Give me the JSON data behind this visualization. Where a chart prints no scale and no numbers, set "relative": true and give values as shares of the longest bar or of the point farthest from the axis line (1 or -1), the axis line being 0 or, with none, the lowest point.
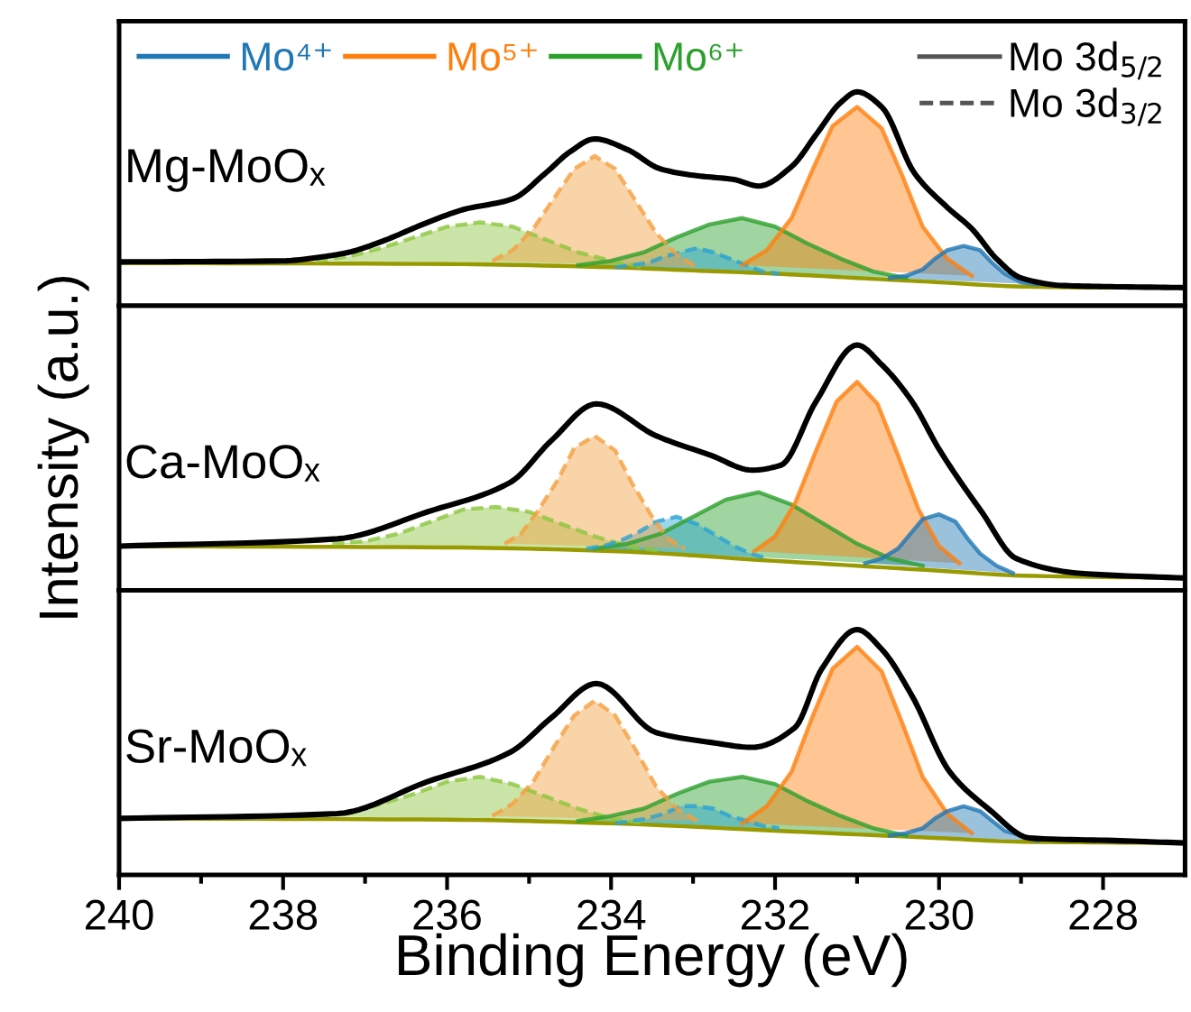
{
  "chart_data": [
    {
      "type": "area",
      "title": "Mg-MoOₓ",
      "relative": true,
      "xlim": [
        240,
        227
      ],
      "tick_labels": false,
      "legend": "top left",
      "annotations": [
        "Mo 3d$_{5/2}$",
        "Mo 3d$_{3/2}$"
      ],
      "series": [
        {
          "type": "line",
          "color": "#999900",
          "x": [
            240,
            236,
            234,
            233,
            232,
            231,
            230,
            229,
            228,
            227
          ],
          "values": [
            0.2,
            0.195,
            0.18,
            0.165,
            0.15,
            0.13,
            0.11,
            0.09,
            0.085,
            0.085
          ]
        },
        {
          "color": "#8cc63f",
          "line_style": "dashed",
          "x": [
            237.6,
            237.2,
            236.8,
            236.4,
            236.0,
            235.6,
            235.2,
            234.8,
            234.4,
            234.0,
            233.6
          ],
          "values": [
            0.21,
            0.23,
            0.27,
            0.32,
            0.37,
            0.39,
            0.37,
            0.31,
            0.25,
            0.21,
            0.18
          ]
        },
        {
          "name": "Mo⁶⁺",
          "color": "#2ca02c",
          "line_style": "solid",
          "x": [
            234.4,
            234.0,
            233.6,
            233.2,
            232.8,
            232.4,
            232.0,
            231.6,
            231.2,
            230.8,
            230.4
          ],
          "values": [
            0.19,
            0.21,
            0.25,
            0.32,
            0.38,
            0.41,
            0.37,
            0.29,
            0.22,
            0.16,
            0.13
          ]
        },
        {
          "color": "#29a3d4",
          "line_style": "dashed",
          "x": [
            233.95,
            233.75,
            233.55,
            233.35,
            233.15,
            232.95,
            232.75,
            232.55,
            232.35,
            232.15,
            231.95
          ],
          "values": [
            0.18,
            0.19,
            0.2,
            0.23,
            0.25,
            0.27,
            0.25,
            0.22,
            0.19,
            0.16,
            0.15
          ]
        },
        {
          "color": "#f5a040",
          "line_style": "dashed",
          "x": [
            235.45,
            235.2,
            234.95,
            234.7,
            234.45,
            234.2,
            233.95,
            233.7,
            233.45,
            233.2,
            232.95
          ],
          "values": [
            0.21,
            0.26,
            0.36,
            0.5,
            0.64,
            0.7,
            0.64,
            0.49,
            0.34,
            0.24,
            0.18
          ]
        },
        {
          "name": "Mo⁵⁺",
          "color": "#ff7f0e",
          "line_style": "solid",
          "x": [
            232.4,
            232.1,
            231.8,
            231.55,
            231.3,
            231.0,
            230.7,
            230.45,
            230.2,
            229.9,
            229.6
          ],
          "values": [
            0.19,
            0.26,
            0.41,
            0.63,
            0.84,
            0.93,
            0.83,
            0.61,
            0.37,
            0.22,
            0.14
          ]
        },
        {
          "name": "Mo⁴⁺",
          "color": "#1f77b4",
          "line_style": "solid",
          "x": [
            230.6,
            230.4,
            230.2,
            230.05,
            229.9,
            229.7,
            229.5,
            229.35,
            229.2,
            229.0,
            228.8
          ],
          "values": [
            0.13,
            0.14,
            0.17,
            0.22,
            0.26,
            0.28,
            0.26,
            0.2,
            0.15,
            0.11,
            0.1
          ]
        },
        {
          "type": "line",
          "color": "#000000",
          "x": [
            240,
            238,
            237.5,
            237.2,
            236.8,
            236.3,
            235.8,
            235.2,
            234.8,
            234.5,
            234.2,
            233.8,
            233.4,
            233.0,
            232.5,
            232.2,
            231.8,
            231.5,
            231.2,
            231.0,
            230.7,
            230.3,
            229.9,
            229.6,
            229.3,
            229.0,
            228.5,
            228,
            227
          ],
          "values": [
            0.205,
            0.21,
            0.23,
            0.25,
            0.3,
            0.38,
            0.45,
            0.5,
            0.62,
            0.72,
            0.78,
            0.73,
            0.64,
            0.61,
            0.59,
            0.56,
            0.65,
            0.8,
            0.95,
            1.0,
            0.93,
            0.62,
            0.46,
            0.36,
            0.22,
            0.13,
            0.095,
            0.09,
            0.085
          ]
        }
      ]
    },
    {
      "type": "area",
      "title": "Ca-MoOₓ",
      "ylabel": "Intensity (a.u.)",
      "relative": true,
      "xlim": [
        240,
        227
      ],
      "tick_labels": false,
      "series": [
        {
          "type": "line",
          "color": "#999900",
          "x": [
            240,
            236,
            234,
            232,
            230,
            229,
            227
          ],
          "values": [
            0.18,
            0.175,
            0.16,
            0.12,
            0.08,
            0.06,
            0.05
          ]
        },
        {
          "color": "#8cc63f",
          "line_style": "dashed",
          "x": [
            237.4,
            237.0,
            236.6,
            236.2,
            235.8,
            235.4,
            235.0,
            234.6,
            234.2,
            233.8,
            233.4
          ],
          "values": [
            0.19,
            0.2,
            0.23,
            0.28,
            0.33,
            0.34,
            0.32,
            0.27,
            0.22,
            0.18,
            0.16
          ]
        },
        {
          "color": "#2ca02c",
          "line_style": "solid",
          "x": [
            234.2,
            233.8,
            233.4,
            233.0,
            232.6,
            232.2,
            231.8,
            231.4,
            231.0,
            230.6,
            230.2
          ],
          "values": [
            0.17,
            0.19,
            0.23,
            0.3,
            0.37,
            0.4,
            0.35,
            0.27,
            0.19,
            0.13,
            0.1
          ]
        },
        {
          "color": "#29a3d4",
          "line_style": "dashed",
          "x": [
            234.3,
            234.1,
            233.9,
            233.65,
            233.45,
            233.2,
            232.95,
            232.75,
            232.5,
            232.3,
            232.1
          ],
          "values": [
            0.17,
            0.18,
            0.2,
            0.24,
            0.28,
            0.3,
            0.27,
            0.23,
            0.18,
            0.15,
            0.13
          ]
        },
        {
          "color": "#f5a040",
          "line_style": "dashed",
          "x": [
            235.3,
            235.1,
            234.9,
            234.65,
            234.45,
            234.2,
            233.95,
            233.75,
            233.5,
            233.3,
            233.1
          ],
          "values": [
            0.19,
            0.23,
            0.32,
            0.45,
            0.58,
            0.63,
            0.57,
            0.44,
            0.3,
            0.21,
            0.17
          ]
        },
        {
          "color": "#ff7f0e",
          "line_style": "solid",
          "x": [
            232.25,
            232.0,
            231.75,
            231.5,
            231.25,
            231.0,
            230.75,
            230.5,
            230.25,
            230.0,
            229.75
          ],
          "values": [
            0.16,
            0.22,
            0.36,
            0.57,
            0.77,
            0.85,
            0.76,
            0.55,
            0.33,
            0.18,
            0.11
          ]
        },
        {
          "color": "#1f77b4",
          "line_style": "solid",
          "x": [
            230.9,
            230.7,
            230.5,
            230.35,
            230.2,
            230.0,
            229.8,
            229.65,
            229.5,
            229.3,
            229.1
          ],
          "values": [
            0.11,
            0.13,
            0.17,
            0.23,
            0.29,
            0.31,
            0.28,
            0.21,
            0.15,
            0.1,
            0.07
          ]
        },
        {
          "type": "line",
          "color": "#000000",
          "x": [
            240,
            237.34,
            236.24,
            235.23,
            234.73,
            234.18,
            233.45,
            232.78,
            232.28,
            231.93,
            231.5,
            231.0,
            230.7,
            230.33,
            229.99,
            229.48,
            229.06,
            228.3,
            227
          ],
          "values": [
            0.18,
            0.21,
            0.32,
            0.44,
            0.61,
            0.76,
            0.63,
            0.55,
            0.49,
            0.51,
            0.77,
            1.0,
            0.92,
            0.77,
            0.57,
            0.32,
            0.13,
            0.07,
            0.05
          ]
        }
      ]
    },
    {
      "type": "area",
      "title": "Sr-MoOₓ",
      "xlabel": "Binding Energy (eV)",
      "relative": true,
      "xlim": [
        240,
        227
      ],
      "tick_labels": "x",
      "xticks": [
        240,
        {
          "value": 239,
          "label": null
        },
        238,
        {
          "value": 237,
          "label": null
        },
        236,
        {
          "value": 235,
          "label": null
        },
        234,
        {
          "value": 233,
          "label": null
        },
        232,
        {
          "value": 231,
          "label": null
        },
        230,
        {
          "value": 229,
          "label": null
        },
        228
      ],
      "series": [
        {
          "type": "line",
          "color": "#999900",
          "x": [
            240,
            236,
            234,
            232,
            230,
            229,
            227
          ],
          "values": [
            0.23,
            0.225,
            0.21,
            0.18,
            0.15,
            0.135,
            0.13
          ]
        },
        {
          "color": "#8cc63f",
          "line_style": "dashed",
          "x": [
            237.6,
            237.2,
            236.8,
            236.4,
            236.0,
            235.6,
            235.2,
            234.8,
            234.4,
            234.0,
            233.6
          ],
          "values": [
            0.24,
            0.25,
            0.29,
            0.33,
            0.38,
            0.4,
            0.37,
            0.32,
            0.27,
            0.23,
            0.21
          ]
        },
        {
          "color": "#2ca02c",
          "line_style": "solid",
          "x": [
            234.4,
            234.0,
            233.6,
            233.2,
            232.8,
            232.4,
            232.0,
            231.6,
            231.2,
            230.8,
            230.4
          ],
          "values": [
            0.22,
            0.24,
            0.27,
            0.33,
            0.38,
            0.4,
            0.37,
            0.3,
            0.24,
            0.19,
            0.16
          ]
        },
        {
          "color": "#29a3d4",
          "line_style": "dashed",
          "x": [
            233.95,
            233.75,
            233.55,
            233.35,
            233.15,
            232.95,
            232.75,
            232.55,
            232.35,
            232.15,
            231.95
          ],
          "values": [
            0.21,
            0.22,
            0.23,
            0.25,
            0.28,
            0.28,
            0.27,
            0.24,
            0.22,
            0.2,
            0.19
          ]
        },
        {
          "color": "#f5a040",
          "line_style": "dashed",
          "x": [
            235.45,
            235.2,
            234.95,
            234.7,
            234.45,
            234.2,
            233.95,
            233.7,
            233.45,
            233.2,
            232.95
          ],
          "values": [
            0.24,
            0.29,
            0.38,
            0.52,
            0.65,
            0.71,
            0.65,
            0.51,
            0.36,
            0.27,
            0.22
          ]
        },
        {
          "color": "#ff7f0e",
          "line_style": "solid",
          "x": [
            232.4,
            232.1,
            231.8,
            231.55,
            231.3,
            231.0,
            230.7,
            230.45,
            230.2,
            229.9,
            229.6
          ],
          "values": [
            0.21,
            0.28,
            0.42,
            0.64,
            0.84,
            0.93,
            0.83,
            0.62,
            0.4,
            0.25,
            0.17
          ]
        },
        {
          "color": "#1f77b4",
          "line_style": "solid",
          "x": [
            230.6,
            230.4,
            230.2,
            230.05,
            229.9,
            229.7,
            229.5,
            229.35,
            229.2,
            229.0,
            228.8
          ],
          "values": [
            0.16,
            0.17,
            0.19,
            0.23,
            0.26,
            0.28,
            0.26,
            0.22,
            0.18,
            0.16,
            0.14
          ]
        },
        {
          "type": "line",
          "color": "#000000",
          "x": [
            240,
            237.34,
            236.24,
            235.23,
            234.73,
            234.18,
            233.45,
            232.78,
            232.28,
            231.76,
            231.43,
            231.0,
            230.7,
            230.33,
            229.87,
            229.4,
            228.89,
            227.87,
            227
          ],
          "values": [
            0.23,
            0.25,
            0.38,
            0.5,
            0.64,
            0.78,
            0.58,
            0.54,
            0.52,
            0.6,
            0.84,
            1.0,
            0.92,
            0.73,
            0.42,
            0.27,
            0.15,
            0.14,
            0.13
          ]
        }
      ]
    }
  ]
}
